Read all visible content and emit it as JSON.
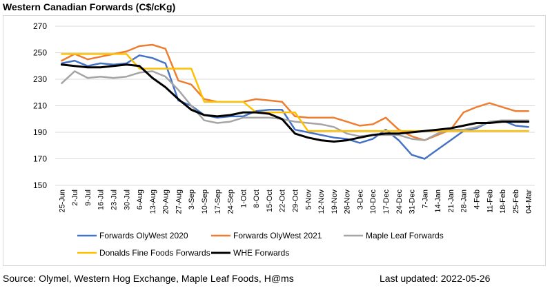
{
  "title": "Western Canadian Forwards (C$/cKg)",
  "footer": {
    "source": "Source: Olymel, Western Hog Exchange, Maple Leaf Foods, H@ms",
    "updated": "Last updated: 2022-05-26"
  },
  "chart_data": {
    "type": "line",
    "title": "Western Canadian Forwards (C$/cKg)",
    "xlabel": "",
    "ylabel": "",
    "ylim": [
      150,
      270
    ],
    "yticks": [
      150,
      170,
      190,
      210,
      230,
      250,
      270
    ],
    "grid": true,
    "legend_position": "bottom",
    "categories": [
      "25-Jun",
      "2-Jul",
      "9-Jul",
      "16-Jul",
      "23-Jul",
      "30-Jul",
      "6-Aug",
      "13-Aug",
      "20-Aug",
      "27-Aug",
      "3-Sep",
      "10-Sep",
      "17-Sep",
      "24-Sep",
      "1-Oct",
      "8-Oct",
      "15-Oct",
      "22-Oct",
      "29-Oct",
      "5-Nov",
      "12-Nov",
      "19-Nov",
      "26-Nov",
      "3-Dec",
      "10-Dec",
      "17-Dec",
      "24-Dec",
      "31-Dec",
      "7-Jan",
      "14-Jan",
      "21-Jan",
      "28-Jan",
      "4-Feb",
      "11-Feb",
      "18-Feb",
      "25-Feb",
      "04-Mar"
    ],
    "series": [
      {
        "name": "Forwards OlyWest 2020",
        "color": "#4472c4",
        "values": [
          242,
          244,
          240,
          242,
          241,
          242,
          248,
          246,
          242,
          214,
          210,
          203,
          201,
          202,
          202,
          206,
          207,
          207,
          192,
          190,
          188,
          186,
          185,
          182,
          185,
          192,
          184,
          173,
          170,
          177,
          184,
          191,
          193,
          198,
          199,
          195,
          194
        ]
      },
      {
        "name": "Forwards OlyWest 2021",
        "color": "#ed7d31",
        "values": [
          244,
          249,
          245,
          247,
          249,
          251,
          255,
          256,
          253,
          229,
          226,
          215,
          213,
          213,
          213,
          215,
          214,
          213,
          202,
          201,
          201,
          201,
          198,
          195,
          196,
          201,
          192,
          187,
          184,
          188,
          192,
          205,
          209,
          212,
          209,
          206,
          206
        ]
      },
      {
        "name": "Maple Leaf Forwards",
        "color": "#a5a5a5",
        "values": [
          227,
          236,
          231,
          232,
          231,
          232,
          235,
          236,
          232,
          222,
          210,
          199,
          197,
          198,
          201,
          201,
          201,
          200,
          198,
          197,
          196,
          194,
          189,
          187,
          188,
          188,
          188,
          185,
          184,
          189,
          192,
          192,
          194,
          198,
          199,
          199,
          199
        ]
      },
      {
        "name": "Donalds Fine Foods Forwards",
        "color": "#ffc000",
        "values": [
          249,
          249,
          249,
          249,
          249,
          249,
          238,
          238,
          238,
          238,
          238,
          213,
          213,
          213,
          213,
          205,
          205,
          205,
          205,
          191,
          191,
          191,
          191,
          191,
          191,
          191,
          191,
          191,
          191,
          191,
          191,
          191,
          191,
          191,
          191,
          191,
          191
        ]
      },
      {
        "name": "WHE Forwards",
        "color": "#000000",
        "values": [
          241,
          240,
          239,
          239,
          240,
          241,
          240,
          231,
          224,
          215,
          207,
          203,
          202,
          203,
          205,
          205,
          204,
          200,
          189,
          186,
          184,
          183,
          184,
          186,
          188,
          189,
          189,
          190,
          191,
          192,
          193,
          195,
          197,
          197,
          198,
          198,
          198
        ]
      }
    ]
  }
}
